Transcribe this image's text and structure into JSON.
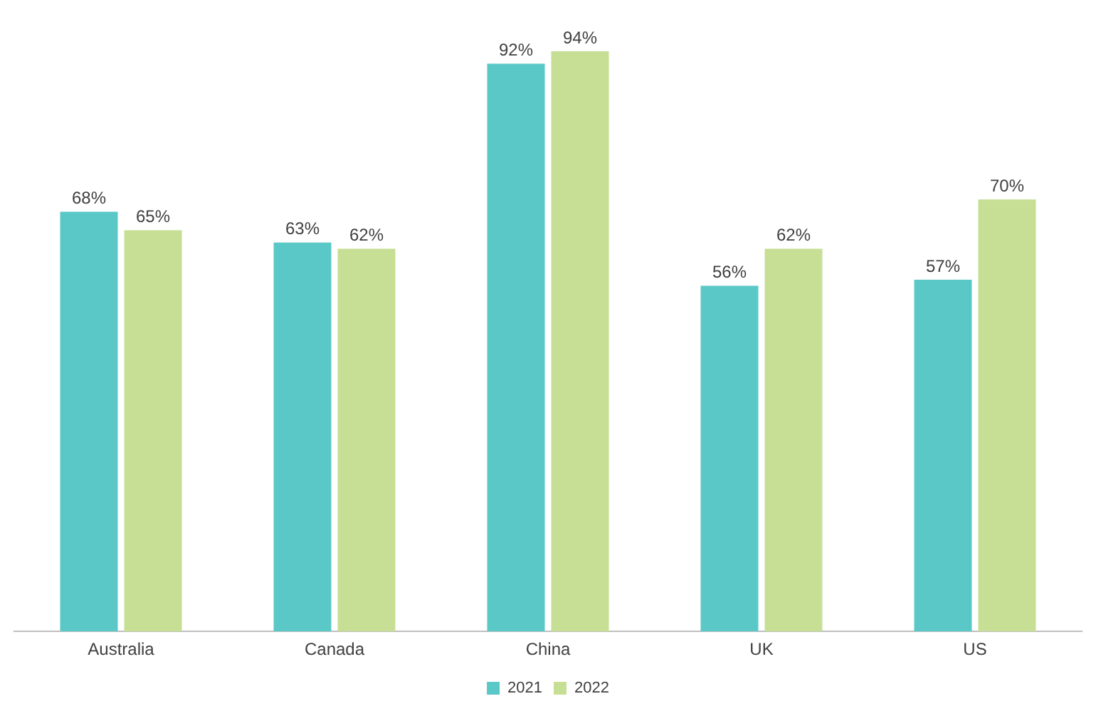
{
  "chart_data": {
    "type": "bar",
    "categories": [
      "Australia",
      "Canada",
      "China",
      "UK",
      "US"
    ],
    "grid": false,
    "legend": "bottom",
    "series": [
      {
        "name": "2021",
        "color": "#5bc8c8",
        "values": [
          68,
          63,
          92,
          56,
          57
        ],
        "value_labels": [
          "68%",
          "63%",
          "92%",
          "56%",
          "57%"
        ]
      },
      {
        "name": "2022",
        "color": "#c6df94",
        "values": [
          65,
          62,
          94,
          62,
          70
        ],
        "value_labels": [
          "65%",
          "62%",
          "94%",
          "62%",
          "70%"
        ]
      }
    ]
  }
}
